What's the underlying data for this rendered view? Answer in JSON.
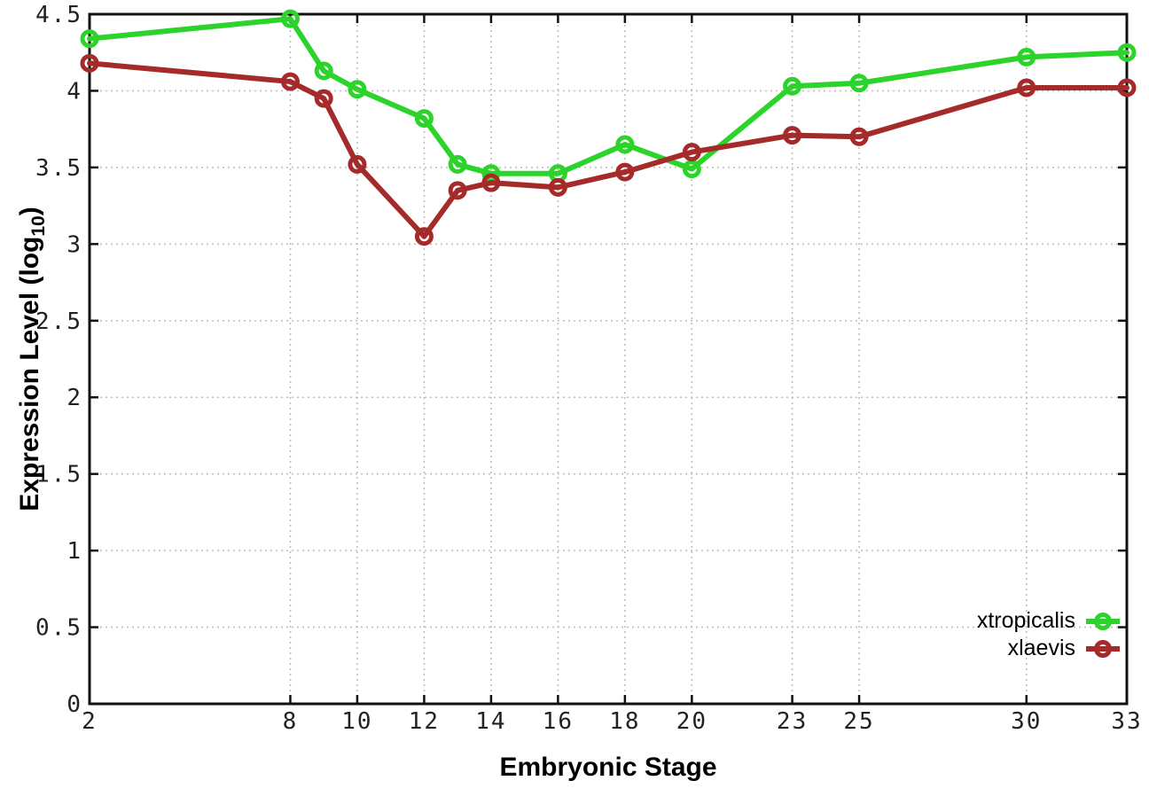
{
  "figure": {
    "xlabel": "Embryonic Stage",
    "ylabel_prefix": "Expression Level (log",
    "ylabel_sub": "10",
    "ylabel_suffix": ")"
  },
  "chart_data": {
    "type": "line",
    "title": "",
    "xlabel": "Embryonic Stage",
    "ylabel": "Expression Level (log10)",
    "x": [
      2,
      8,
      9,
      10,
      12,
      13,
      14,
      16,
      18,
      20,
      23,
      25,
      30,
      33
    ],
    "series": [
      {
        "name": "xtropicalis",
        "color": "#2BD32B",
        "values": [
          4.34,
          4.47,
          4.13,
          4.01,
          3.82,
          3.52,
          3.46,
          3.46,
          3.65,
          3.49,
          4.03,
          4.05,
          4.22,
          4.25
        ]
      },
      {
        "name": "xlaevis",
        "color": "#A52A2A",
        "values": [
          4.18,
          4.06,
          3.95,
          3.52,
          3.05,
          3.35,
          3.4,
          3.37,
          3.47,
          3.6,
          3.71,
          3.7,
          4.02,
          4.02
        ]
      }
    ],
    "xticks": [
      2,
      8,
      10,
      12,
      14,
      16,
      18,
      20,
      23,
      25,
      30,
      33
    ],
    "yticks": [
      0,
      0.5,
      1,
      1.5,
      2,
      2.5,
      3,
      3.5,
      4,
      4.5
    ],
    "xlim": [
      2,
      33
    ],
    "ylim": [
      0,
      4.5
    ],
    "grid": true,
    "legend_position": "bottom-right-inside",
    "marker": "open-circle",
    "colors": {
      "grid": "#bbbbbb",
      "border": "#111111",
      "tick_label": "#222222"
    }
  }
}
